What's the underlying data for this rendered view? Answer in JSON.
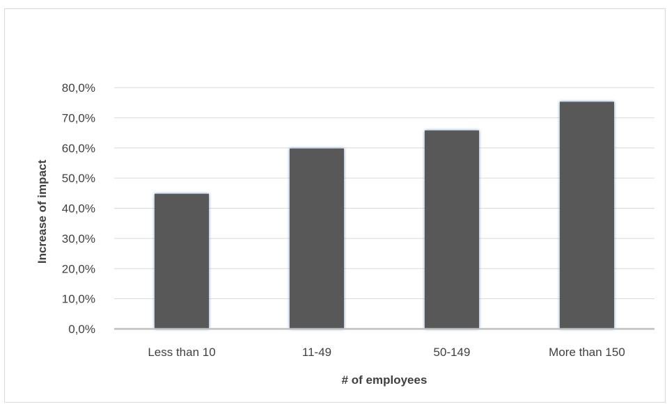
{
  "chart_data": {
    "type": "bar",
    "categories": [
      "Less than 10",
      "11-49",
      "50-149",
      "More than 150"
    ],
    "values": [
      0.448,
      0.598,
      0.658,
      0.753
    ],
    "xlabel": "# of employees",
    "ylabel": "Increase of impact",
    "ylim": [
      0,
      0.8
    ],
    "yticks": [
      0,
      0.1,
      0.2,
      0.3,
      0.4,
      0.5,
      0.6,
      0.7,
      0.8
    ],
    "ytick_labels": [
      "0,0%",
      "10,0%",
      "20,0%",
      "30,0%",
      "40,0%",
      "50,0%",
      "60,0%",
      "70,0%",
      "80,0%"
    ],
    "grid": true,
    "legend": "none",
    "colors": {
      "bar_fill": "#595959",
      "bar_glow": "#6f93bf",
      "gridline": "#d9d9d9",
      "axis_line": "#bfbfbf",
      "text": "#404040"
    }
  }
}
